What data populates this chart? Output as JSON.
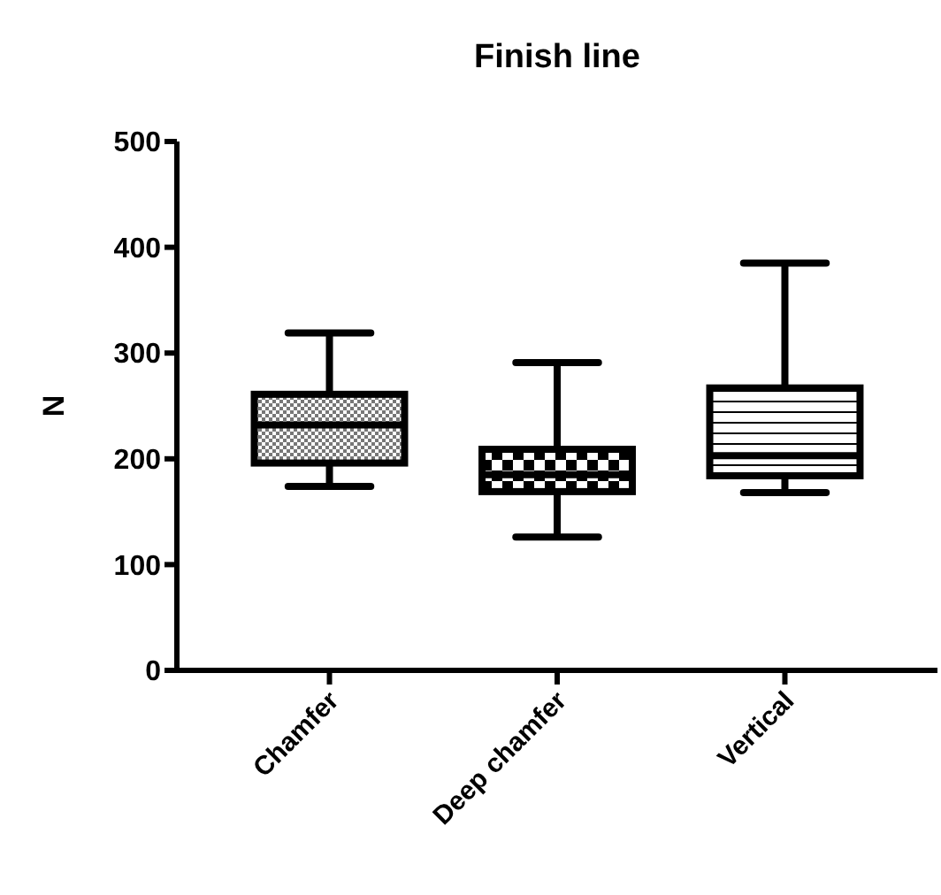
{
  "chart_data": {
    "type": "box",
    "title": "Finish line",
    "ylabel": "N",
    "categories": [
      "Chamfer",
      "Deep chamfer",
      "Vertical"
    ],
    "boxes": [
      {
        "low": 174,
        "q1": 196,
        "median": 232,
        "q3": 261,
        "high": 319
      },
      {
        "low": 126,
        "q1": 169,
        "median": 185,
        "q3": 209,
        "high": 291
      },
      {
        "low": 168,
        "q1": 184,
        "median": 203,
        "q3": 267,
        "high": 385
      }
    ],
    "color": "#000000",
    "ylim": [
      0,
      500
    ],
    "yticks": [
      0,
      100,
      200,
      300,
      400,
      500
    ],
    "grid": false
  }
}
